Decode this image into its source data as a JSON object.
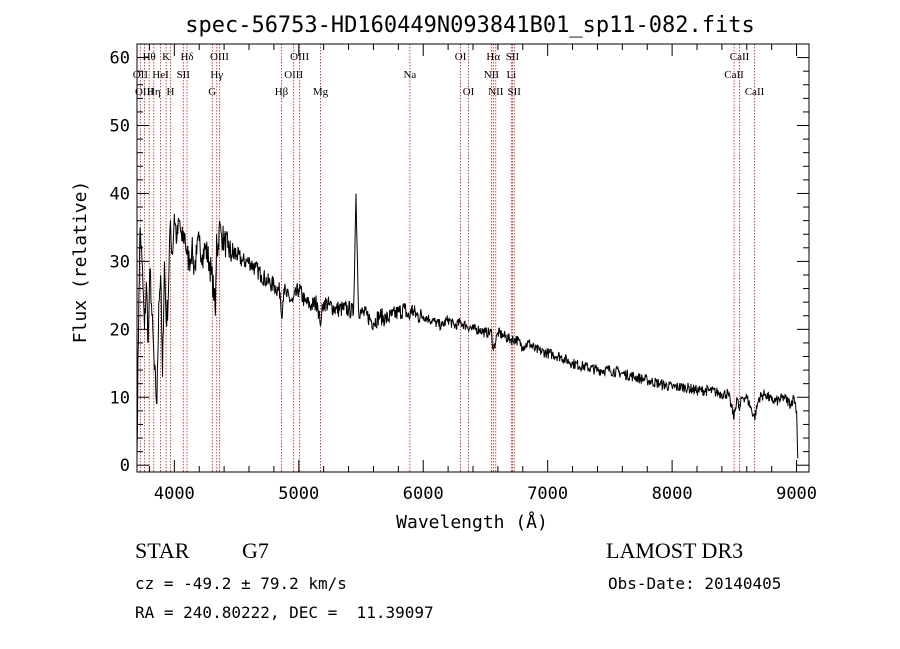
{
  "chart_data": {
    "type": "line",
    "title": "spec-56753-HD160449N093841B01_sp11-082.fits",
    "xlabel": "Wavelength (Å)",
    "ylabel": "Flux (relative)",
    "xlim": [
      3700,
      9100
    ],
    "ylim": [
      -1,
      62
    ],
    "xticks": [
      4000,
      5000,
      6000,
      7000,
      8000,
      9000
    ],
    "yticks": [
      0,
      10,
      20,
      30,
      40,
      50,
      60
    ],
    "grid": false,
    "series": [
      {
        "name": "flux",
        "x": [
          3700,
          3715,
          3725,
          3740,
          3760,
          3775,
          3790,
          3805,
          3820,
          3840,
          3860,
          3875,
          3890,
          3905,
          3920,
          3935,
          3950,
          3965,
          3985,
          4000,
          4020,
          4040,
          4060,
          4085,
          4100,
          4120,
          4140,
          4160,
          4180,
          4200,
          4225,
          4250,
          4280,
          4300,
          4320,
          4330,
          4340,
          4350,
          4360,
          4380,
          4400,
          4430,
          4460,
          4500,
          4550,
          4600,
          4650,
          4700,
          4750,
          4800,
          4850,
          4861,
          4880,
          4900,
          4950,
          5000,
          5050,
          5100,
          5150,
          5170,
          5183,
          5200,
          5250,
          5300,
          5350,
          5400,
          5440,
          5460,
          5480,
          5500,
          5550,
          5600,
          5650,
          5700,
          5750,
          5800,
          5850,
          5890,
          5900,
          5950,
          6000,
          6050,
          6100,
          6150,
          6200,
          6250,
          6300,
          6350,
          6400,
          6450,
          6500,
          6550,
          6563,
          6600,
          6650,
          6700,
          6750,
          6800,
          6850,
          6900,
          7000,
          7100,
          7200,
          7300,
          7400,
          7500,
          7600,
          7700,
          7800,
          7900,
          8000,
          8100,
          8200,
          8300,
          8400,
          8450,
          8498,
          8520,
          8542,
          8560,
          8600,
          8662,
          8700,
          8750,
          8800,
          8850,
          8900,
          8950,
          8980,
          9000,
          9010
        ],
        "values": [
          2,
          25,
          35,
          30,
          20,
          27,
          18,
          29,
          22,
          14,
          9,
          24,
          28,
          13,
          30,
          21,
          24,
          35,
          31,
          37,
          33,
          36,
          33,
          34,
          31,
          30,
          32,
          29,
          31,
          33,
          31,
          32,
          30,
          28,
          25,
          22,
          34,
          31,
          35,
          34,
          33,
          32,
          31,
          31,
          30,
          30,
          29,
          28,
          27,
          26.5,
          25.5,
          22,
          26,
          25,
          24,
          26,
          24,
          23.5,
          24,
          21,
          22,
          24,
          23.5,
          23,
          23,
          23,
          22.5,
          40,
          23,
          22.5,
          22,
          21,
          22,
          21.5,
          22,
          22.5,
          23,
          21.5,
          23,
          22,
          22,
          21.5,
          21,
          20.5,
          21.5,
          20.5,
          21,
          20.5,
          20,
          20,
          19.5,
          19.5,
          17,
          19.5,
          19,
          18.5,
          18.5,
          17.5,
          18,
          17,
          16.5,
          16,
          15,
          14.5,
          14,
          14,
          13.5,
          13,
          12.5,
          12,
          11.5,
          11.5,
          11,
          11,
          10.5,
          10.5,
          7,
          10,
          8,
          10,
          10,
          7,
          10,
          10.5,
          9.5,
          9.5,
          10,
          9,
          10,
          8,
          1
        ]
      }
    ],
    "line_markers": [
      {
        "label": "Hθ",
        "wavelength": 3798,
        "row": 0
      },
      {
        "label": "OII",
        "wavelength": 3727,
        "row": 1
      },
      {
        "label": "OIII",
        "wavelength": 3760,
        "row": 2
      },
      {
        "label": "Hη",
        "wavelength": 3835,
        "row": 2
      },
      {
        "label": "HeI",
        "wavelength": 3889,
        "row": 1
      },
      {
        "label": "K",
        "wavelength": 3934,
        "row": 0
      },
      {
        "label": "H",
        "wavelength": 3969,
        "row": 2
      },
      {
        "label": "Hδ",
        "wavelength": 4102,
        "row": 0
      },
      {
        "label": "SII",
        "wavelength": 4072,
        "row": 1
      },
      {
        "label": "G",
        "wavelength": 4305,
        "row": 2
      },
      {
        "label": "OIII",
        "wavelength": 4363,
        "row": 0
      },
      {
        "label": "Hγ",
        "wavelength": 4341,
        "row": 1
      },
      {
        "label": "Hβ",
        "wavelength": 4861,
        "row": 2
      },
      {
        "label": "OIII",
        "wavelength": 5007,
        "row": 0
      },
      {
        "label": "OIII",
        "wavelength": 4959,
        "row": 1
      },
      {
        "label": "Mg",
        "wavelength": 5175,
        "row": 2
      },
      {
        "label": "Na",
        "wavelength": 5893,
        "row": 1
      },
      {
        "label": "OI",
        "wavelength": 6300,
        "row": 0
      },
      {
        "label": "OI",
        "wavelength": 6364,
        "row": 2
      },
      {
        "label": "Hα",
        "wavelength": 6563,
        "row": 0
      },
      {
        "label": "NII",
        "wavelength": 6548,
        "row": 1
      },
      {
        "label": "NII",
        "wavelength": 6583,
        "row": 2
      },
      {
        "label": "SII",
        "wavelength": 6717,
        "row": 0
      },
      {
        "label": "Li",
        "wavelength": 6708,
        "row": 1
      },
      {
        "label": "SII",
        "wavelength": 6731,
        "row": 2
      },
      {
        "label": "CaII",
        "wavelength": 8542,
        "row": 0
      },
      {
        "label": "CaII",
        "wavelength": 8498,
        "row": 1
      },
      {
        "label": "CaII",
        "wavelength": 8662,
        "row": 2
      }
    ]
  },
  "info": {
    "object_class": "STAR",
    "subclass": "G7",
    "survey": "LAMOST DR3",
    "redshift": "cz = -49.2 ± 79.2 km/s",
    "obs_date": "Obs-Date: 20140405",
    "coordinates": "RA = 240.80222, DEC =  11.39097"
  },
  "colors": {
    "spectrum": "#000000",
    "marker_line": "#b22222",
    "axis": "#000000"
  }
}
